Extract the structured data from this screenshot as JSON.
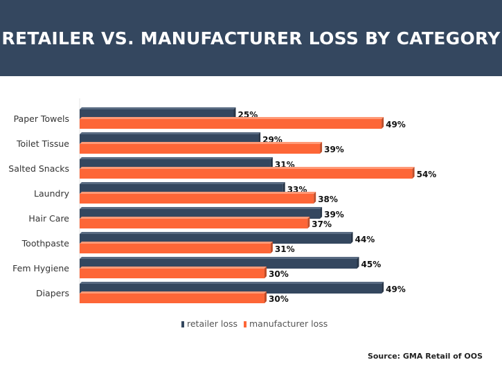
{
  "header": {
    "title": "RETAILER VS. MANUFACTURER LOSS BY CATEGORY"
  },
  "source": "Source: GMA Retail of OOS",
  "colors": {
    "retailer": "#34475f",
    "retailer_top": "#596b82",
    "manufacturer": "#fd6637",
    "manufacturer_top": "#ff9a77"
  },
  "chart_data": {
    "type": "bar",
    "orientation": "horizontal",
    "title": "RETAILER VS. MANUFACTURER LOSS BY CATEGORY",
    "categories": [
      "Paper Towels",
      "Toilet Tissue",
      "Salted Snacks",
      "Laundry",
      "Hair Care",
      "Toothpaste",
      "Fem Hygiene",
      "Diapers"
    ],
    "series": [
      {
        "name": "retailer loss",
        "values": [
          25,
          29,
          31,
          33,
          39,
          44,
          45,
          49
        ],
        "labels": [
          "25%",
          "29%",
          "31%",
          "33%",
          "39%",
          "44%",
          "45%",
          "49%"
        ]
      },
      {
        "name": "manufacturer loss",
        "values": [
          49,
          39,
          54,
          38,
          37,
          31,
          30,
          30
        ],
        "labels": [
          "49%",
          "39%",
          "54%",
          "38%",
          "37%",
          "31%",
          "30%",
          "30%"
        ]
      }
    ],
    "xlim": [
      0,
      56
    ],
    "grid": false,
    "legend": "bottom-center",
    "unit": "%"
  }
}
